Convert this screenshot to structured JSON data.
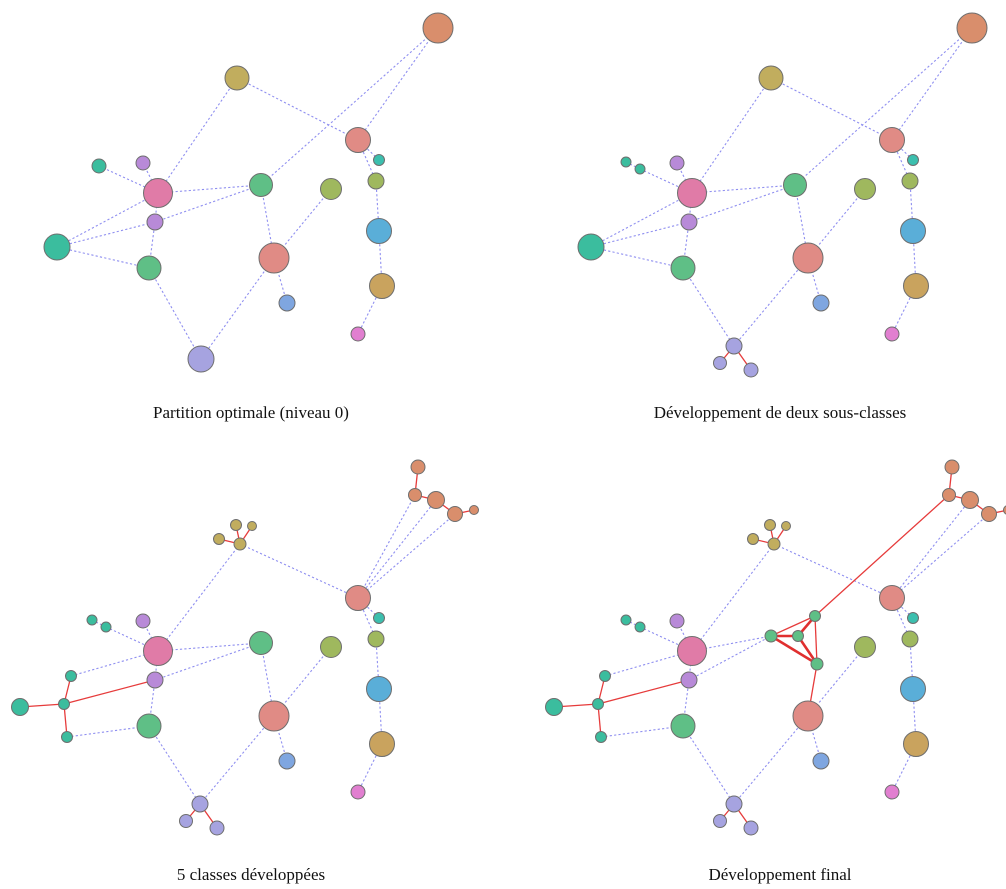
{
  "panels": [
    {
      "id": "p1",
      "caption": "Partition optimale (niveau 0)"
    },
    {
      "id": "p2",
      "caption": "Développement de deux sous-classes"
    },
    {
      "id": "p3",
      "caption": "5 classes développées"
    },
    {
      "id": "p4",
      "caption": "Développement final"
    }
  ],
  "node_colors": {
    "orange": "#d98e6c",
    "olive": "#c1ad5e",
    "pink": "#e07ba7",
    "green": "#5fbf86",
    "lightgreen": "#9fb85e",
    "teal": "#3bbd9e",
    "lilac": "#b88ad8",
    "salmon": "#e08b85",
    "blue": "#5aaed8",
    "periwinkle": "#a6a3e0",
    "cornflower": "#7fa6e0",
    "tan": "#c9a35e",
    "magenta": "#e17fd0",
    "tealsmall": "#3cbfae"
  },
  "edge_colors": {
    "dashed": "#8f8ff0",
    "red": "#e63b3b"
  }
}
